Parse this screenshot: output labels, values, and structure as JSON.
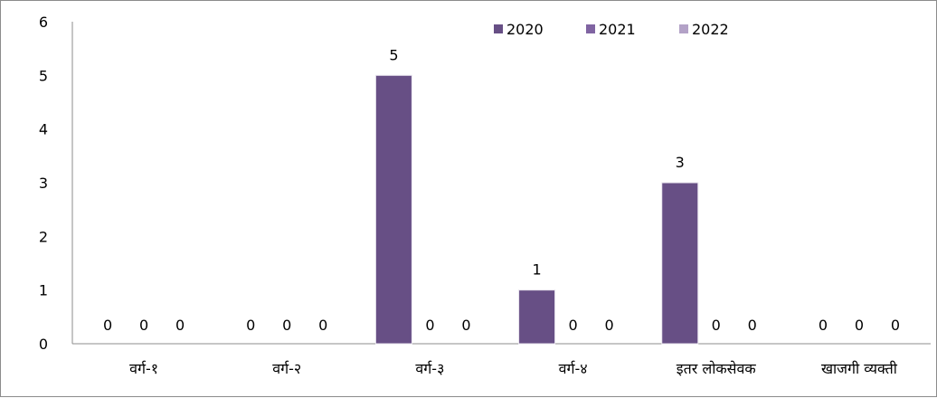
{
  "chart_data": {
    "type": "bar",
    "categories": [
      "वर्ग-१",
      "वर्ग-२",
      "वर्ग-३",
      "वर्ग-४",
      "इतर लोकसेवक",
      "खाजगी व्यक्ती"
    ],
    "series": [
      {
        "name": "2020",
        "values": [
          0,
          0,
          5,
          1,
          3,
          0
        ],
        "color": "#674f85"
      },
      {
        "name": "2021",
        "values": [
          0,
          0,
          0,
          0,
          0,
          0
        ],
        "color": "#8064a2"
      },
      {
        "name": "2022",
        "values": [
          0,
          0,
          0,
          0,
          0,
          0
        ],
        "color": "#b3a2c7"
      }
    ],
    "ylim": [
      0,
      6
    ],
    "yticks": [
      0,
      1,
      2,
      3,
      4,
      5,
      6
    ],
    "grid": false,
    "legend": "top-right",
    "data_labels": true,
    "title": "",
    "xlabel": "",
    "ylabel": ""
  }
}
